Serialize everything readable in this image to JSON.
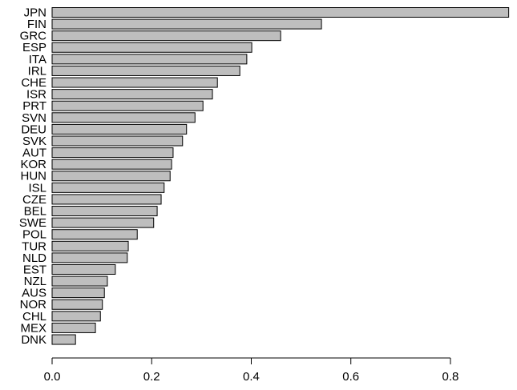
{
  "chart_data": {
    "type": "bar",
    "orientation": "horizontal",
    "categories": [
      "JPN",
      "FIN",
      "GRC",
      "ESP",
      "ITA",
      "IRL",
      "CHE",
      "ISR",
      "PRT",
      "SVN",
      "DEU",
      "SVK",
      "AUT",
      "KOR",
      "HUN",
      "ISL",
      "CZE",
      "BEL",
      "SWE",
      "POL",
      "TUR",
      "NLD",
      "EST",
      "NZL",
      "AUS",
      "NOR",
      "CHL",
      "MEX",
      "DNK"
    ],
    "values": [
      0.917,
      0.541,
      0.459,
      0.401,
      0.391,
      0.377,
      0.332,
      0.322,
      0.303,
      0.287,
      0.27,
      0.262,
      0.243,
      0.24,
      0.237,
      0.225,
      0.219,
      0.211,
      0.204,
      0.171,
      0.153,
      0.151,
      0.127,
      0.111,
      0.105,
      0.101,
      0.097,
      0.087,
      0.047
    ],
    "color": "#bebebe",
    "xlim": [
      0,
      0.92
    ],
    "xticks": [
      {
        "value": 0,
        "label": "0.0"
      },
      0.2,
      0.4,
      0.6,
      0.8
    ]
  }
}
